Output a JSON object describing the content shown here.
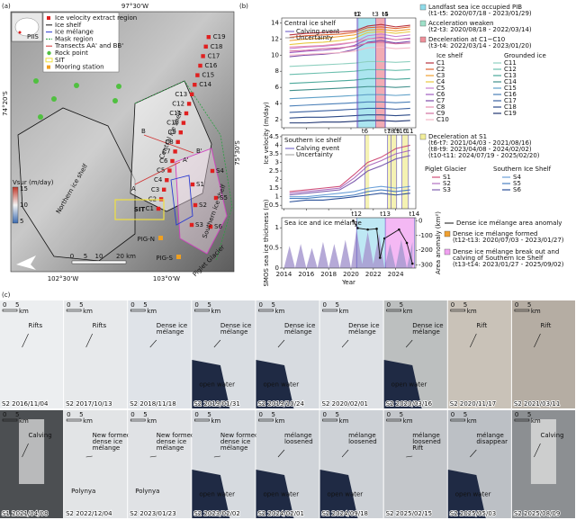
{
  "panel_labels": [
    "(a)",
    "(b)",
    "(c)"
  ],
  "map": {
    "coords": {
      "top": "97°30'W",
      "left": "74°20'S",
      "right": "75°30'S",
      "bottom_left": "102°30'W",
      "bottom_right": "103°0'W"
    },
    "legend": [
      "Ice velocity extract region",
      "Ice shelf",
      "Ice mélange",
      "Mask region",
      "Transects AA' and BB'",
      "Rock point",
      "SIT",
      "Mooring station"
    ],
    "inset_label": "PIIS",
    "region_labels": [
      "Central ice shelf",
      "Northern ice shelf",
      "Southern ice shelf",
      "Piglet Glacier",
      "SIT",
      "PIG-N",
      "PIG-S"
    ],
    "points_c": [
      "C1",
      "C2",
      "C3",
      "C4",
      "C5",
      "C6",
      "C7",
      "C8",
      "C9",
      "C10",
      "C11",
      "C12",
      "C13",
      "C14",
      "C15",
      "C16",
      "C17",
      "C18",
      "C19"
    ],
    "points_s": [
      "S1",
      "S2",
      "S3",
      "S4",
      "S5",
      "S6"
    ],
    "transect_labels": [
      "A",
      "A'",
      "B",
      "B'"
    ],
    "colorbar": {
      "title": "Vsur (m/day)",
      "labels": [
        "15",
        "10",
        "5"
      ]
    },
    "scale": [
      "0",
      "5",
      "10",
      "20 km"
    ]
  },
  "chart_data": [
    {
      "type": "line",
      "title": "Central ice shelf",
      "ylabel": "Ice velocity (m/day)",
      "legend_items": [
        "Calving event",
        "Uncertainty"
      ],
      "xlim": [
        2013.8,
        2025.8
      ],
      "xticks": [
        2014,
        2016,
        2018,
        2020,
        2022,
        2024
      ],
      "ylim": [
        1,
        14.6
      ],
      "yticks": [
        2,
        4,
        6,
        8,
        10,
        12,
        14
      ],
      "bands": [
        {
          "from": 2020.63,
          "to": 2022.2,
          "color": "#8fdcea"
        },
        {
          "from": 2022.2,
          "to": 2023.05,
          "color": "#ee8f9a"
        }
      ],
      "events": [
        {
          "label": "t1",
          "x": 2020.55
        },
        {
          "label": "t2",
          "x": 2020.63
        },
        {
          "label": "t3",
          "x": 2022.2
        },
        {
          "label": "t4",
          "x": 2023.05
        },
        {
          "label": "t5",
          "x": 2023.08
        }
      ],
      "x": [
        2014.5,
        2016,
        2017.5,
        2019,
        2020.3,
        2021.5,
        2022.7,
        2024,
        2025.3
      ],
      "series": [
        {
          "name": "C1",
          "color": "#b8323e",
          "values": [
            12.5,
            12.7,
            12.8,
            12.9,
            13.0,
            13.6,
            13.8,
            13.5,
            13.7
          ]
        },
        {
          "name": "C2",
          "color": "#e0612f",
          "values": [
            12.2,
            12.4,
            12.5,
            12.6,
            12.8,
            13.4,
            13.5,
            13.3,
            13.5
          ]
        },
        {
          "name": "C3",
          "color": "#f0a030",
          "values": [
            11.8,
            12.0,
            12.1,
            12.3,
            12.5,
            13.1,
            13.2,
            13.0,
            13.2
          ]
        },
        {
          "name": "C4",
          "color": "#e8c840",
          "values": [
            11.3,
            11.5,
            11.6,
            11.8,
            12.1,
            12.8,
            12.9,
            12.7,
            12.9
          ]
        },
        {
          "name": "C5",
          "color": "#c87fd0",
          "values": [
            10.8,
            11.0,
            11.1,
            11.3,
            11.6,
            12.4,
            12.6,
            12.3,
            12.5
          ]
        },
        {
          "name": "C6",
          "color": "#a05cc0",
          "values": [
            10.3,
            10.5,
            10.6,
            10.8,
            11.2,
            12.0,
            12.2,
            11.9,
            12.1
          ]
        },
        {
          "name": "C7",
          "color": "#7d4aa8",
          "values": [
            9.8,
            10.0,
            10.1,
            10.3,
            10.7,
            11.6,
            11.8,
            11.5,
            11.7
          ]
        },
        {
          "name": "C8",
          "color": "#e88fb0",
          "values": [
            11.0,
            11.1,
            11.2,
            11.4,
            11.6,
            12.0,
            12.1,
            11.9,
            12.0
          ]
        },
        {
          "name": "C9",
          "color": "#d070a0",
          "values": [
            10.5,
            10.6,
            10.8,
            10.9,
            11.1,
            11.5,
            11.6,
            11.4,
            11.5
          ]
        },
        {
          "name": "C10",
          "color": "#f4b8c8",
          "values": [
            10.0,
            10.1,
            10.2,
            10.3,
            10.5,
            10.9,
            11.0,
            10.8,
            10.9
          ]
        },
        {
          "name": "C11",
          "color": "#8fd0c0",
          "values": [
            8.6,
            8.7,
            8.8,
            8.9,
            9.0,
            9.2,
            9.2,
            9.1,
            9.2
          ]
        },
        {
          "name": "C12",
          "color": "#6bbfae",
          "values": [
            7.6,
            7.7,
            7.8,
            7.9,
            8.0,
            8.2,
            8.2,
            8.1,
            8.2
          ]
        },
        {
          "name": "C13",
          "color": "#4aa89a",
          "values": [
            6.5,
            6.6,
            6.7,
            6.8,
            6.9,
            7.1,
            7.1,
            7.0,
            7.1
          ]
        },
        {
          "name": "C14",
          "color": "#3f8f8a",
          "values": [
            5.6,
            5.7,
            5.8,
            5.9,
            6.0,
            6.1,
            6.1,
            6.0,
            6.1
          ]
        },
        {
          "name": "C15",
          "color": "#5fa0c8",
          "values": [
            4.6,
            4.7,
            4.8,
            4.9,
            5.0,
            5.1,
            5.1,
            5.0,
            5.1
          ]
        },
        {
          "name": "C16",
          "color": "#4a7fb8",
          "values": [
            3.7,
            3.8,
            3.9,
            4.0,
            4.1,
            4.2,
            4.2,
            4.1,
            4.2
          ]
        },
        {
          "name": "C17",
          "color": "#3a60a0",
          "values": [
            2.9,
            3.0,
            3.1,
            3.2,
            3.3,
            3.4,
            3.4,
            3.3,
            3.4
          ]
        },
        {
          "name": "C18",
          "color": "#2c4a88",
          "values": [
            2.2,
            2.3,
            2.3,
            2.4,
            2.5,
            2.6,
            2.6,
            2.5,
            2.6
          ]
        },
        {
          "name": "C19",
          "color": "#1f3470",
          "values": [
            1.6,
            1.6,
            1.7,
            1.7,
            1.8,
            1.9,
            1.9,
            1.8,
            1.9
          ]
        }
      ]
    },
    {
      "type": "line",
      "title": "Southern ice shelf",
      "ylabel": "Ice velocity (m/day)",
      "legend_items": [
        "Calving event",
        "Uncertainty"
      ],
      "xlim": [
        2013.8,
        2025.8
      ],
      "xticks": [
        2014,
        2016,
        2018,
        2020,
        2022,
        2024
      ],
      "ylim": [
        0.3,
        4.6
      ],
      "yticks": [
        0.5,
        1,
        1.5,
        2,
        2.5,
        3,
        3.5,
        4,
        4.5
      ],
      "bands": [
        {
          "from": 2021.25,
          "to": 2021.63,
          "color": "#f2ee9a"
        },
        {
          "from": 2023.27,
          "to": 2024.09,
          "color": "#f2ee9a"
        },
        {
          "from": 2024.55,
          "to": 2025.14,
          "color": "#f2ee9a"
        }
      ],
      "events": [
        {
          "label": "t6",
          "x": 2021.25
        },
        {
          "label": "t7",
          "x": 2023.27
        },
        {
          "label": "t8",
          "x": 2023.6
        },
        {
          "label": "t9",
          "x": 2024.09
        },
        {
          "label": "t10",
          "x": 2024.55
        },
        {
          "label": "t11",
          "x": 2025.14
        }
      ],
      "x": [
        2014.5,
        2016,
        2017.5,
        2019,
        2020.3,
        2021.5,
        2022.7,
        2024,
        2025.3
      ],
      "series": [
        {
          "name": "S1",
          "color": "#d0507a",
          "values": [
            1.3,
            1.4,
            1.5,
            1.6,
            2.3,
            3.0,
            3.3,
            3.8,
            4.0
          ]
        },
        {
          "name": "S2",
          "color": "#b070c0",
          "values": [
            1.2,
            1.3,
            1.4,
            1.5,
            2.1,
            2.8,
            3.1,
            3.5,
            3.7
          ]
        },
        {
          "name": "S3",
          "color": "#8060b0",
          "values": [
            1.1,
            1.2,
            1.3,
            1.4,
            1.9,
            2.5,
            2.8,
            3.2,
            3.4
          ]
        },
        {
          "name": "S4",
          "color": "#6aa0d8",
          "values": [
            1.0,
            1.0,
            1.1,
            1.2,
            1.3,
            1.5,
            1.6,
            1.5,
            1.6
          ]
        },
        {
          "name": "S5",
          "color": "#4a80c0",
          "values": [
            0.9,
            0.9,
            1.0,
            1.0,
            1.1,
            1.3,
            1.4,
            1.3,
            1.4
          ]
        },
        {
          "name": "S6",
          "color": "#2a5098",
          "values": [
            0.7,
            0.8,
            0.8,
            0.9,
            1.0,
            1.1,
            1.2,
            1.1,
            1.2
          ]
        }
      ]
    },
    {
      "type": "line",
      "title": "Sea ice and ice mélange",
      "ylabel": "SMOS sea ice thickness (m)",
      "y2label": "Area anomaly (km²)",
      "xlabel": "Year",
      "xlim": [
        2013.8,
        2025.8
      ],
      "xticks": [
        2014,
        2016,
        2018,
        2020,
        2022,
        2024
      ],
      "ylim": [
        0,
        1.25
      ],
      "yticks": [
        0,
        0.5,
        1
      ],
      "y2lim": [
        -320,
        20
      ],
      "y2ticks": [
        -300,
        -200,
        -100,
        0
      ],
      "bands": [
        {
          "from": 2020.5,
          "to": 2023.07,
          "color": "#a8e0f0"
        },
        {
          "from": 2023.07,
          "to": 2025.67,
          "color": "#f0a0f0"
        }
      ],
      "events": [
        {
          "label": "t12",
          "x": 2020.5
        },
        {
          "label": "t13",
          "x": 2023.07
        },
        {
          "label": "t14",
          "x": 2025.67
        }
      ],
      "x": [
        2014,
        2014.5,
        2015,
        2015.5,
        2016,
        2016.5,
        2017,
        2017.5,
        2018,
        2018.5,
        2019,
        2019.5,
        2020,
        2020.5,
        2021,
        2021.5,
        2022,
        2022.5,
        2023,
        2023.5,
        2024,
        2024.5,
        2025,
        2025.5
      ],
      "series": [
        {
          "name": "SMOS sea ice thickness",
          "style": "area",
          "color": "#a89ad0",
          "values": [
            0,
            0.55,
            0,
            0.6,
            0,
            0.5,
            0,
            0.65,
            0,
            0.6,
            0,
            0.7,
            0,
            0.95,
            0.1,
            0.9,
            0.1,
            0.85,
            0,
            0.6,
            0,
            0.7,
            0,
            0.65
          ]
        },
        {
          "name": "Dense ice mélange area anomaly",
          "axis": "y2",
          "color": "#111111",
          "x": [
            2020.2,
            2020.6,
            2021.5,
            2022.3,
            2022.6,
            2023,
            2024.3,
            2025,
            2025.5
          ],
          "values": [
            0,
            -50,
            -60,
            -55,
            -250,
            -120,
            -60,
            -150,
            -290
          ]
        }
      ]
    }
  ],
  "legend_b": {
    "central": [
      {
        "color": "#8fdcea",
        "lines": [
          "Landfast sea ice occupied PIB",
          "(t1-t5: 2020/07/18 - 2023/01/29)"
        ]
      },
      {
        "color": "#9ee0c8",
        "lines": [
          "Acceleration weaken",
          "(t2-t3: 2020/08/18 - 2022/03/14)"
        ]
      },
      {
        "color": "#ee8f9a",
        "lines": [
          "Deceleration at C1~C10",
          "(t3-t4: 2022/03/14 - 2023/01/20)"
        ]
      }
    ],
    "central_heads": [
      "Ice shelf",
      "Grounded ice"
    ],
    "southern": {
      "color": "#f2ee9a",
      "lines": [
        "Deceleration at S1",
        "(t6-t7: 2021/04/03 - 2021/08/16)",
        "(t8-t9: 2023/04/08 - 2024/02/02)",
        "(t10-t11: 2024/07/19 - 2025/02/20)"
      ]
    },
    "southern_heads": [
      "Piglet Glacier",
      "Southern Ice Shelf"
    ],
    "bottom": [
      {
        "color": "#f0a030",
        "lines": [
          "Dense ice mélange formed",
          "(t12-t13: 2020/07/03 - 2023/01/27)"
        ]
      },
      {
        "color": "#f0a0f0",
        "lines": [
          "Dense ice mélange break out and",
          "calving of Southern Ice Shelf",
          "(t13-t14: 2023/01/27 - 2025/09/02)"
        ]
      }
    ]
  },
  "images": {
    "scale": [
      "0",
      "5",
      "km"
    ],
    "panels": [
      {
        "caption": "S2 2016/11/04",
        "notes": [
          "Rifts"
        ]
      },
      {
        "caption": "S2 2017/10/13",
        "notes": [
          "Rifts"
        ]
      },
      {
        "caption": "S2 2018/11/18",
        "notes": [
          "Dense ice",
          "mélange"
        ]
      },
      {
        "caption": "S2 2019/01/31",
        "notes": [
          "Dense ice",
          "mélange",
          "open water"
        ]
      },
      {
        "caption": "S2 2019/10/24",
        "notes": [
          "Dense ice",
          "mélange",
          "open water"
        ]
      },
      {
        "caption": "S2 2020/02/01",
        "notes": [
          "Dense ice",
          "mélange"
        ]
      },
      {
        "caption": "S2 2020/03/16",
        "notes": [
          "Dense ice",
          "mélange",
          "open water"
        ]
      },
      {
        "caption": "S2 2020/11/17",
        "notes": [
          "Rift"
        ]
      },
      {
        "caption": "S2 2021/03/11",
        "notes": [
          "Rift"
        ]
      },
      {
        "caption": "S1 2021/04/08",
        "notes": [
          "Calving"
        ]
      },
      {
        "caption": "S2 2022/12/04",
        "notes": [
          "New formed",
          "dense ice",
          "mélange",
          "Polynya"
        ]
      },
      {
        "caption": "S2 2023/01/23",
        "notes": [
          "New formed",
          "dense ice",
          "mélange",
          "Polynya"
        ]
      },
      {
        "caption": "S2 2023/02/02",
        "notes": [
          "New formed",
          "dense ice",
          "mélange",
          "open water"
        ]
      },
      {
        "caption": "S2 2024/02/01",
        "notes": [
          "mélange",
          "loosened",
          "open water"
        ]
      },
      {
        "caption": "S2 2024/09/18",
        "notes": [
          "mélange",
          "loosened",
          "open water"
        ]
      },
      {
        "caption": "S2 2025/02/15",
        "notes": [
          "mélange",
          "loosened",
          "Rift"
        ]
      },
      {
        "caption": "S2 2025/05/03",
        "notes": [
          "mélange",
          "disappear",
          "open water"
        ]
      },
      {
        "caption": "S2 2025/08/09",
        "notes": [
          "Calving"
        ]
      }
    ]
  }
}
